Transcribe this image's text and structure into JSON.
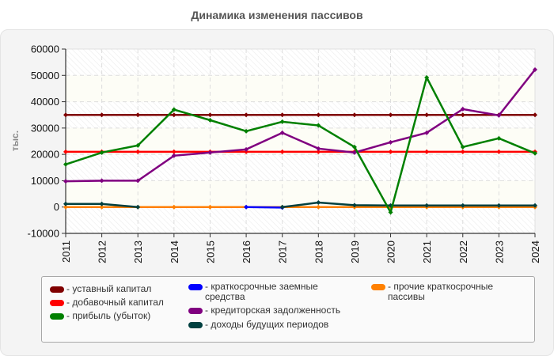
{
  "chart_data": {
    "type": "line",
    "title": "Динамика изменения пассивов",
    "xlabel": "",
    "ylabel": "тыс.",
    "ylim": [
      -10000,
      60000
    ],
    "yticks": [
      -10000,
      0,
      10000,
      20000,
      30000,
      40000,
      50000,
      60000
    ],
    "grid": true,
    "legend_position": "bottom",
    "x": [
      "2011",
      "2012",
      "2013",
      "2014",
      "2015",
      "2016",
      "2017",
      "2018",
      "2019",
      "2020",
      "2021",
      "2022",
      "2023",
      "2024"
    ],
    "series": [
      {
        "name": "уставный капитал",
        "color": "#800000",
        "values": [
          35000,
          35000,
          35000,
          35000,
          35000,
          35000,
          35000,
          35000,
          35000,
          35000,
          35000,
          35000,
          35000,
          35000
        ]
      },
      {
        "name": "добавочный капитал",
        "color": "#ff0000",
        "values": [
          21000,
          21000,
          21000,
          21000,
          21000,
          21000,
          21000,
          21000,
          21000,
          21000,
          21000,
          21000,
          21000,
          21000
        ]
      },
      {
        "name": "прибыль (убыток)",
        "color": "#008000",
        "values": [
          16200,
          20700,
          23400,
          37000,
          33000,
          28800,
          32400,
          31000,
          22800,
          -2000,
          49200,
          22800,
          26100,
          20400
        ]
      },
      {
        "name": "краткосрочные заемные средства",
        "color": "#0000ff",
        "values": [
          null,
          null,
          null,
          null,
          null,
          0,
          -200,
          null,
          null,
          null,
          null,
          null,
          null,
          null
        ]
      },
      {
        "name": "кредиторская задолженность",
        "color": "#800080",
        "values": [
          9800,
          10000,
          10000,
          19500,
          20700,
          21900,
          28200,
          22200,
          20700,
          24600,
          28200,
          37200,
          34800,
          52200
        ]
      },
      {
        "name": "доходы будущих периодов",
        "color": "#004040",
        "values": [
          1200,
          1200,
          0,
          null,
          null,
          null,
          0,
          1700,
          700,
          600,
          600,
          600,
          600,
          600
        ]
      },
      {
        "name": "прочие краткосрочные пассивы",
        "color": "#ff8000",
        "values": [
          0,
          0,
          0,
          0,
          0,
          0,
          0,
          0,
          0,
          0,
          0,
          0,
          0,
          0
        ]
      }
    ]
  },
  "legend": {
    "items": [
      {
        "label": "- уставный капитал",
        "color": "#800000"
      },
      {
        "label": "- добавочный капитал",
        "color": "#ff0000"
      },
      {
        "label": "- прибыль (убыток)",
        "color": "#008000"
      },
      {
        "label": "- краткосрочные заемные средства",
        "color": "#0000ff"
      },
      {
        "label": "- кредиторская задолженность",
        "color": "#800080"
      },
      {
        "label": "- доходы будущих периодов",
        "color": "#004040"
      },
      {
        "label": "- прочие краткосрочные пассивы",
        "color": "#ff8000"
      }
    ]
  }
}
